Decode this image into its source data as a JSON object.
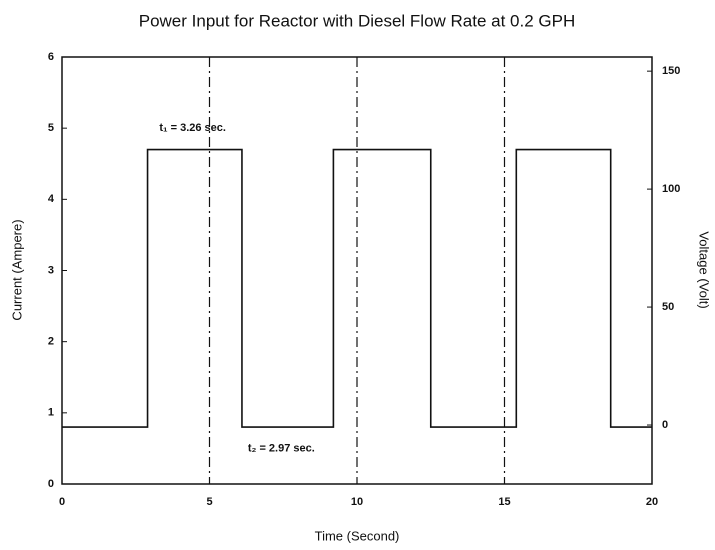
{
  "chart_data": {
    "type": "line",
    "title": "Power Input for Reactor with Diesel Flow Rate at 0.2 GPH",
    "x_label": "Time (Second)",
    "y_label": "Current (Ampere)",
    "y2_label": "Voltage (Volt)",
    "x": [
      0,
      2.9,
      2.9,
      6.1,
      6.1,
      9.2,
      9.2,
      12.5,
      12.5,
      15.4,
      15.4,
      18.6,
      18.6,
      20
    ],
    "series": [
      {
        "color": "#111111",
        "values": [
          0.8,
          0.8,
          4.7,
          4.7,
          0.8,
          0.8,
          4.7,
          4.7,
          0.8,
          0.8,
          4.7,
          4.7,
          0.8,
          0.8
        ]
      }
    ],
    "vlines": [
      5,
      10,
      15
    ],
    "annotations": [
      {
        "text": "t₁ = 3.26 sec.",
        "x": 3.3,
        "y": 5.0
      },
      {
        "text": "t₂ = 2.97 sec.",
        "x": 6.3,
        "y": 0.5
      }
    ],
    "xlim": [
      0,
      20
    ],
    "xticks": [
      0,
      5,
      10,
      15,
      20
    ],
    "ylim": [
      0,
      6
    ],
    "yticks": [
      0,
      1,
      2,
      3,
      4,
      5,
      6
    ],
    "y2lim": [
      -25,
      156
    ],
    "y2ticks": [
      0,
      50,
      100,
      150
    ],
    "grid": false
  }
}
